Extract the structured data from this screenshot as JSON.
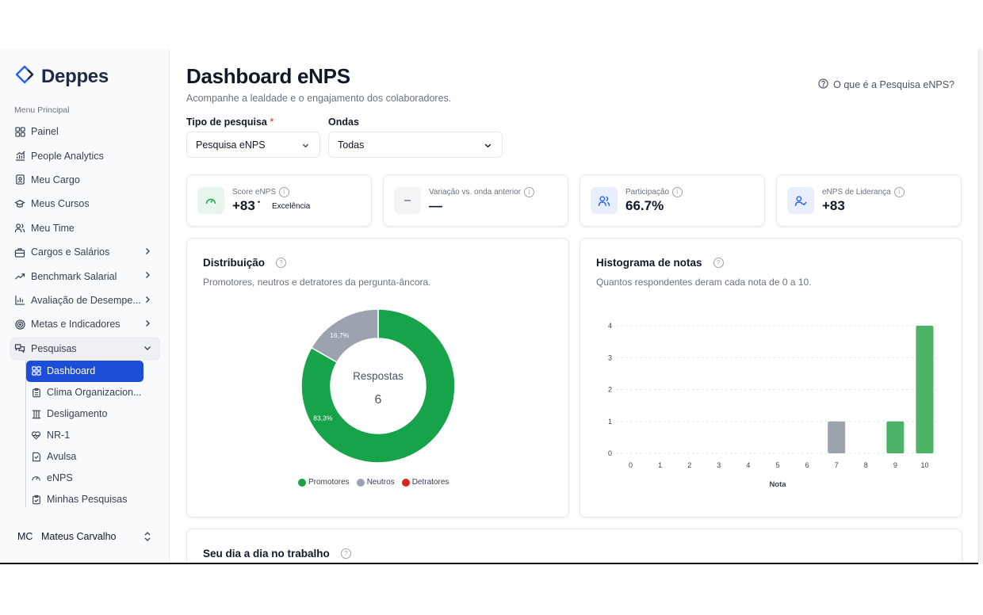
{
  "app": {
    "name": "Deppes"
  },
  "sidebar": {
    "menu_title": "Menu Principal",
    "items": [
      {
        "label": "Painel",
        "icon": "grid-icon"
      },
      {
        "label": "People Analytics",
        "icon": "chart-icon"
      },
      {
        "label": "Meu Cargo",
        "icon": "badge-icon"
      },
      {
        "label": "Meus Cursos",
        "icon": "graduation-cap-icon"
      },
      {
        "label": "Meu Time",
        "icon": "users-icon"
      },
      {
        "label": "Cargos e Salários",
        "icon": "briefcase-icon"
      },
      {
        "label": "Benchmark Salarial",
        "icon": "trending-up-icon"
      },
      {
        "label": "Avaliação de Desempe...",
        "icon": "bar-chart-icon"
      },
      {
        "label": "Metas e Indicadores",
        "icon": "target-icon"
      },
      {
        "label": "Pesquisas",
        "icon": "chat-icon"
      }
    ],
    "sub_items": [
      {
        "label": "Dashboard",
        "icon": "grid-icon"
      },
      {
        "label": "Clima Organizacion...",
        "icon": "clipboard-icon"
      },
      {
        "label": "Desligamento",
        "icon": "columns-icon"
      },
      {
        "label": "NR-1",
        "icon": "heart-pulse-icon"
      },
      {
        "label": "Avulsa",
        "icon": "file-icon"
      },
      {
        "label": "eNPS",
        "icon": "gauge-icon"
      },
      {
        "label": "Minhas Pesquisas",
        "icon": "clipboard-check-icon"
      }
    ],
    "user": {
      "initials": "MC",
      "name": "Mateus Carvalho"
    }
  },
  "header": {
    "title": "Dashboard eNPS",
    "subtitle": "Acompanhe a lealdade e o engajamento dos colaboradores.",
    "help_link": "O que é a Pesquisa eNPS?"
  },
  "filters": {
    "survey_type_label": "Tipo de pesquisa",
    "survey_type_required": "*",
    "survey_type_value": "Pesquisa eNPS",
    "waves_label": "Ondas",
    "waves_value": "Todas"
  },
  "kpis": [
    {
      "label": "Score eNPS",
      "value": "+83",
      "dot": "•",
      "tag": "Excelência",
      "icon": "gauge-icon",
      "icon_bg": "#e8f5ec",
      "icon_color": "#16a34a"
    },
    {
      "label": "Variação vs. onda anterior",
      "value": "—",
      "icon": "minus-icon",
      "icon_bg": "#f3f4f6",
      "icon_color": "#6b7280"
    },
    {
      "label": "Participação",
      "value": "66.7%",
      "icon": "users-icon",
      "icon_bg": "#e8eefb",
      "icon_color": "#2563eb"
    },
    {
      "label": "eNPS de Liderança",
      "value": "+83",
      "icon": "user-check-icon",
      "icon_bg": "#e8eefb",
      "icon_color": "#2563eb"
    }
  ],
  "distribution": {
    "title": "Distribuição",
    "subtitle": "Promotores, neutros e detratores da pergunta-âncora.",
    "center_label": "Respostas",
    "center_value": "6",
    "legend": [
      "Promotores",
      "Neutros",
      "Detratores"
    ],
    "colors": {
      "promotores": "#16a34a",
      "neutros": "#9ca3af",
      "detratores": "#dc2626"
    }
  },
  "histogram": {
    "title": "Histograma de notas",
    "subtitle": "Quantos respondentes deram cada nota de 0 a 10.",
    "bar_colors": {
      "neutral": "#9ca3af",
      "promoter": "#4bb266"
    }
  },
  "daily": {
    "title": "Seu dia a dia no trabalho"
  },
  "chart_data": [
    {
      "type": "pie",
      "categories": [
        "Promotores",
        "Neutros",
        "Detratores"
      ],
      "values": [
        83.3,
        16.7,
        0
      ],
      "slice_labels": [
        "83,3%",
        "16,7%",
        ""
      ],
      "title": "Distribuição"
    },
    {
      "type": "bar",
      "title": "Histograma de notas",
      "categories": [
        "0",
        "1",
        "2",
        "3",
        "4",
        "5",
        "6",
        "7",
        "8",
        "9",
        "10"
      ],
      "values": [
        0,
        0,
        0,
        0,
        0,
        0,
        0,
        1,
        0,
        1,
        4
      ],
      "xlabel": "Nota",
      "ylabel": "",
      "ylim": [
        0,
        4
      ],
      "yticks": [
        "0",
        "1",
        "2",
        "3",
        "4"
      ],
      "grid": true
    }
  ]
}
